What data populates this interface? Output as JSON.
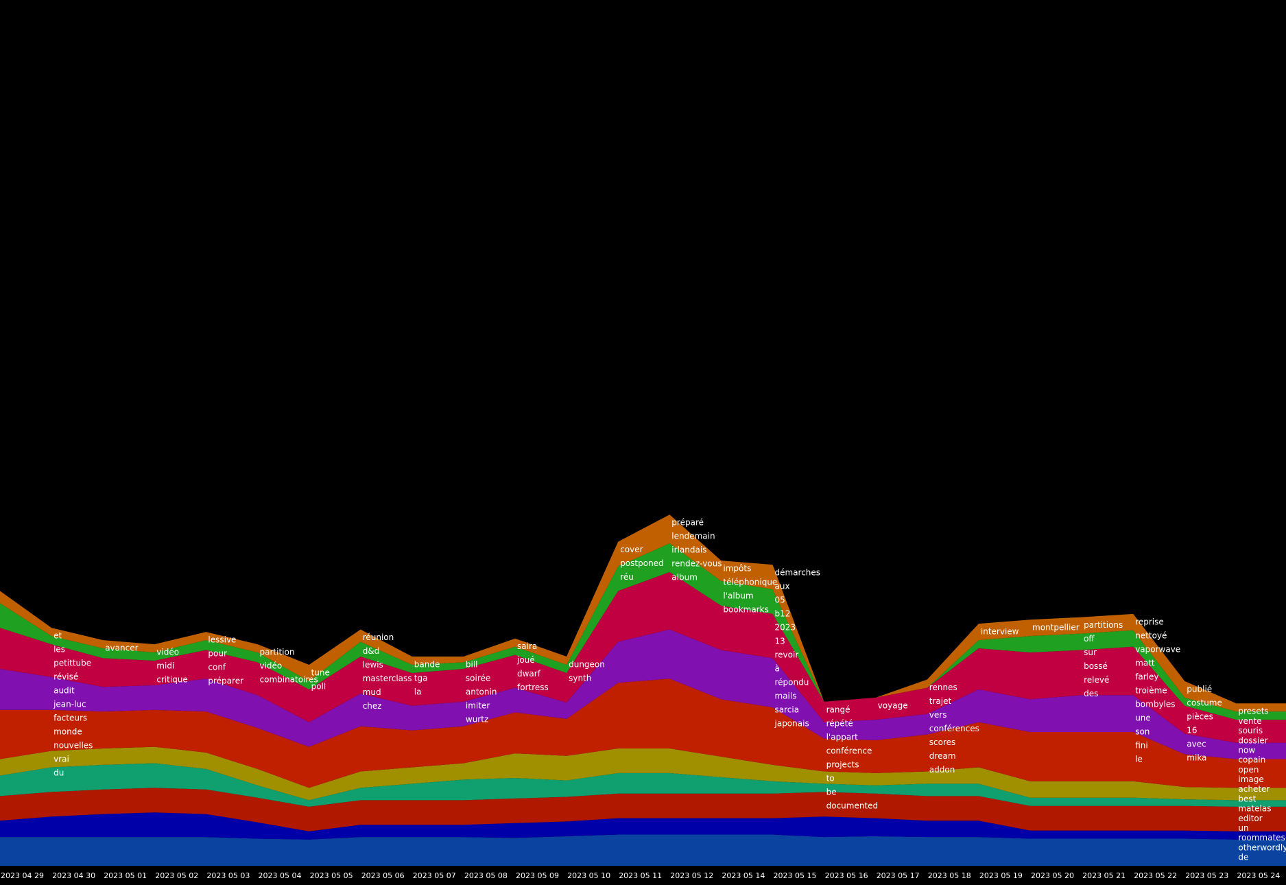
{
  "chart_data": {
    "type": "streamgraph",
    "categories": [
      "2023 04 29",
      "2023 04 30",
      "2023 05 01",
      "2023 05 02",
      "2023 05 03",
      "2023 05 04",
      "2023 05 05",
      "2023 05 06",
      "2023 05 07",
      "2023 05 08",
      "2023 05 09",
      "2023 05 10",
      "2023 05 11",
      "2023 05 12",
      "2023 05 14",
      "2023 05 15",
      "2023 05 16",
      "2023 05 17",
      "2023 05 18",
      "2023 05 19",
      "2023 05 20",
      "2023 05 21",
      "2023 05 22",
      "2023 05 23",
      "2023 05 24"
    ],
    "series": [
      {
        "color": "#0a44a0",
        "values": [
          35,
          35,
          35,
          35,
          35,
          33,
          32,
          35,
          35,
          35,
          34,
          36,
          38,
          38,
          38,
          38,
          35,
          36,
          35,
          35,
          33,
          33,
          33,
          33,
          32
        ]
      },
      {
        "color": "#0000a8",
        "values": [
          20,
          25,
          28,
          30,
          28,
          20,
          10,
          15,
          15,
          15,
          18,
          18,
          20,
          20,
          20,
          20,
          25,
          22,
          20,
          20,
          10,
          10,
          10,
          10,
          10
        ]
      },
      {
        "color": "#b01800",
        "values": [
          30,
          30,
          30,
          30,
          30,
          30,
          30,
          30,
          30,
          30,
          30,
          30,
          30,
          30,
          30,
          30,
          30,
          30,
          30,
          30,
          30,
          30,
          30,
          30,
          30
        ]
      },
      {
        "color": "#10a070",
        "values": [
          25,
          30,
          30,
          30,
          25,
          15,
          8,
          15,
          20,
          25,
          25,
          20,
          25,
          25,
          20,
          15,
          10,
          10,
          15,
          15,
          10,
          10,
          10,
          8,
          8
        ]
      },
      {
        "color": "#a09000",
        "values": [
          20,
          20,
          20,
          20,
          20,
          20,
          15,
          20,
          20,
          20,
          30,
          30,
          30,
          30,
          25,
          20,
          15,
          15,
          15,
          20,
          20,
          20,
          20,
          15,
          15
        ]
      },
      {
        "color": "#c02000",
        "values": [
          60,
          50,
          45,
          45,
          50,
          50,
          50,
          55,
          45,
          45,
          50,
          45,
          80,
          85,
          70,
          70,
          40,
          40,
          45,
          55,
          60,
          60,
          60,
          40,
          35
        ]
      },
      {
        "color": "#8010b0",
        "values": [
          50,
          40,
          30,
          30,
          40,
          40,
          30,
          40,
          30,
          30,
          30,
          20,
          50,
          60,
          60,
          60,
          20,
          25,
          25,
          40,
          40,
          45,
          45,
          25,
          20
        ]
      },
      {
        "color": "#c00040",
        "values": [
          50,
          40,
          35,
          30,
          35,
          40,
          40,
          45,
          40,
          40,
          40,
          36,
          62,
          70,
          54,
          54,
          25,
          27,
          32,
          50,
          57,
          55,
          59,
          34,
          28
        ]
      },
      {
        "color": "#20a020",
        "values": [
          30,
          10,
          12,
          10,
          12,
          12,
          10,
          18,
          10,
          8,
          10,
          10,
          30,
          35,
          30,
          30,
          0,
          0,
          0,
          10,
          20,
          20,
          20,
          10,
          10
        ]
      },
      {
        "color": "#c06000",
        "values": [
          15,
          10,
          10,
          10,
          10,
          10,
          20,
          15,
          10,
          7,
          10,
          10,
          30,
          35,
          25,
          30,
          0,
          0,
          10,
          20,
          20,
          20,
          20,
          20,
          10
        ]
      }
    ],
    "labels": [
      [],
      [
        "et",
        "les",
        "petittube",
        "révisé",
        "audit",
        "jean-luc",
        "facteurs",
        "monde",
        "nouvelles",
        "vrai",
        "du"
      ],
      [
        "avancer"
      ],
      [
        "vidéo",
        "midi",
        "critique"
      ],
      [
        "lessive",
        "pour",
        "conf",
        "préparer"
      ],
      [
        "partition",
        "vidéo",
        "combinatoires"
      ],
      [
        "tune",
        "poll"
      ],
      [
        "réunion",
        "d&d",
        "lewis",
        "masterclass",
        "mud",
        "chez"
      ],
      [
        "bande",
        "tga",
        "la"
      ],
      [
        "bill",
        "soirée",
        "antonin",
        "imiter",
        "wurtz"
      ],
      [
        "saira",
        "joué",
        "dwarf",
        "fortress"
      ],
      [
        "dungeon",
        "synth"
      ],
      [
        "cover",
        "postponed",
        "réu"
      ],
      [
        "préparé",
        "lendemain",
        "irlandais",
        "rendez-vous",
        "album"
      ],
      [
        "impôts",
        "téléphonique",
        "l'album",
        "bookmarks"
      ],
      [
        "démarches",
        "aux",
        "05",
        "b12",
        "2023",
        "13",
        "revoir",
        "à",
        "répondu",
        "mails",
        "sarcia",
        "japonais"
      ],
      [
        "rangé",
        "répété",
        "l'appart",
        "conférence",
        "projects",
        "to",
        "be",
        "documented"
      ],
      [
        "voyage"
      ],
      [
        "rennes",
        "trajet",
        "vers",
        "conférences",
        "scores",
        "dream",
        "addon"
      ],
      [
        "interview"
      ],
      [
        "montpellier"
      ],
      [
        "partitions",
        "off",
        "sur",
        "bossé",
        "relevé",
        "des"
      ],
      [
        "reprise",
        "nettoyé",
        "vaporwave",
        "matt",
        "farley",
        "troième",
        "bombyles",
        "une",
        "son",
        "fini",
        "le"
      ],
      [
        "publié",
        "costume",
        "pièces",
        "16",
        "avec",
        "mika"
      ],
      [
        "presets",
        "vente",
        "souris",
        "dossier",
        "now",
        "copain",
        "open",
        "image",
        "acheter",
        "best",
        "matelas",
        "editor",
        "un",
        "roommates",
        "otherwordly",
        "de"
      ]
    ]
  }
}
